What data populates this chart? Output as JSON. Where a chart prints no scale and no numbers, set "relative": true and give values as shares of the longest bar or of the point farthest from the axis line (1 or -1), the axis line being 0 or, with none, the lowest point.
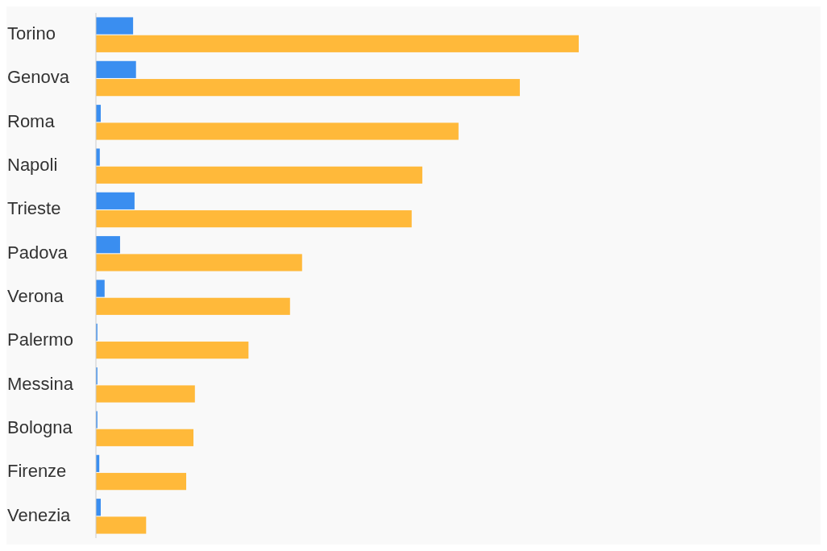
{
  "chart_data": {
    "type": "bar",
    "orientation": "horizontal",
    "relative": true,
    "categories": [
      "Torino",
      "Genova",
      "Roma",
      "Napoli",
      "Trieste",
      "Padova",
      "Verona",
      "Palermo",
      "Messina",
      "Bologna",
      "Firenze",
      "Venezia"
    ],
    "series": [
      {
        "color": "#3a8ef0",
        "values": [
          0.077,
          0.083,
          0.01,
          0.008,
          0.08,
          0.05,
          0.018,
          0.003,
          0.003,
          0.003,
          0.007,
          0.01
        ]
      },
      {
        "color": "#ffb93a",
        "values": [
          1,
          0.878,
          0.751,
          0.676,
          0.654,
          0.427,
          0.402,
          0.316,
          0.205,
          0.202,
          0.187,
          0.104
        ]
      }
    ]
  }
}
